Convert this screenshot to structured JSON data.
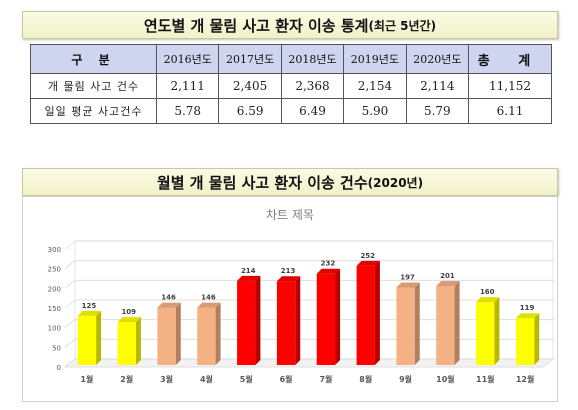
{
  "section1": {
    "title": "연도별 개 물림 사고 환자 이송 통계",
    "title_sub": "(최근 5년간)"
  },
  "table": {
    "header_label": "구 분",
    "years": [
      "2016년도",
      "2017년도",
      "2018년도",
      "2019년도",
      "2020년도"
    ],
    "total_label": "총 계",
    "rows": [
      {
        "label": "개 물림 사고 건수",
        "values": [
          "2,111",
          "2,405",
          "2,368",
          "2,154",
          "2,114"
        ],
        "total": "11,152"
      },
      {
        "label": "일일 평균 사고건수",
        "values": [
          "5.78",
          "6.59",
          "6.49",
          "5.90",
          "5.79"
        ],
        "total": "6.11"
      }
    ]
  },
  "section2": {
    "title": "월별 개 물림 사고 환자 이송 건수",
    "title_sub": "(2020년)"
  },
  "chart_data": {
    "type": "bar",
    "title": "차트 제목",
    "categories": [
      "1월",
      "2월",
      "3월",
      "4월",
      "5월",
      "6월",
      "7월",
      "8월",
      "9월",
      "10월",
      "11월",
      "12월"
    ],
    "values": [
      125,
      109,
      146,
      146,
      214,
      213,
      232,
      252,
      197,
      201,
      160,
      119
    ],
    "bar_colors": [
      "#ffff00",
      "#ffff00",
      "#f4b183",
      "#f4b183",
      "#ff0000",
      "#ff0000",
      "#ff0000",
      "#ff0000",
      "#f4b183",
      "#f4b183",
      "#ffff00",
      "#ffff00"
    ],
    "ylim": [
      0,
      300
    ],
    "yticks": [
      0,
      50,
      100,
      150,
      200,
      250,
      300
    ],
    "grid": true,
    "legend": "none"
  }
}
